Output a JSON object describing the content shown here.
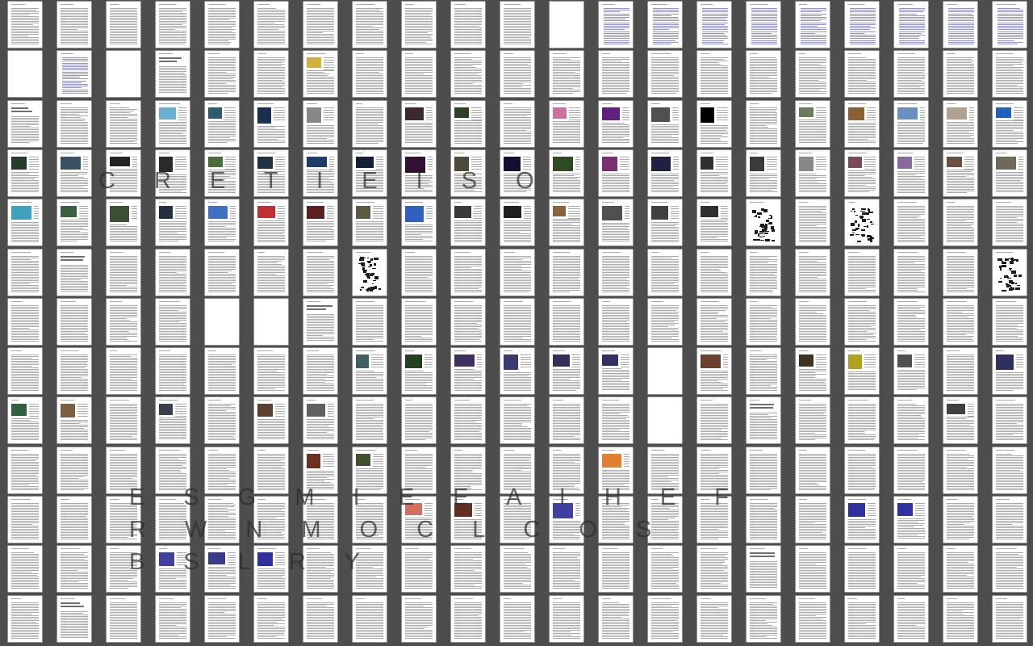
{
  "viewer": {
    "columns": 21,
    "rows": 13,
    "page_color": "#ffffff",
    "background_color": "#4d4d4d",
    "link_color": "#8f8ff0"
  },
  "overlay": {
    "line1": "C R E T I E I S O",
    "line2": "E S G M I E E A I H E F",
    "line3": "R W N M O C L C O S",
    "line4": "B S L R Y"
  },
  "pages": {
    "blank": [
      [
        0,
        1
      ],
      [
        2,
        1
      ],
      [
        11,
        0
      ],
      [
        4,
        6
      ],
      [
        13,
        8
      ],
      [
        13,
        7
      ],
      [
        5,
        6
      ]
    ],
    "images": [
      [
        0,
        3,
        "#263a2b"
      ],
      [
        1,
        3,
        "#3a5060"
      ],
      [
        2,
        3,
        "#222"
      ],
      [
        3,
        3,
        "#2a2a2a"
      ],
      [
        4,
        3,
        "#4a6b3a"
      ],
      [
        5,
        3,
        "#223044"
      ],
      [
        6,
        3,
        "#1e3c66"
      ],
      [
        7,
        3,
        "#132033"
      ],
      [
        8,
        3,
        "#321030"
      ],
      [
        9,
        3,
        "#4e4a3a"
      ],
      [
        10,
        3,
        "#101030"
      ],
      [
        11,
        3,
        "#2e4a24"
      ],
      [
        12,
        3,
        "#7a3070"
      ],
      [
        13,
        3,
        "#202040"
      ],
      [
        14,
        3,
        "#303030"
      ],
      [
        15,
        3,
        "#3a3a3a"
      ],
      [
        16,
        3,
        "#888"
      ],
      [
        17,
        3,
        "#7b4a5a"
      ],
      [
        18,
        3,
        "#8a6a9a"
      ],
      [
        19,
        3,
        "#6a5040"
      ],
      [
        20,
        3,
        "#706858"
      ],
      [
        3,
        2,
        "#6ab0d0"
      ],
      [
        4,
        2,
        "#2e5a70"
      ],
      [
        5,
        2,
        "#1a3050"
      ],
      [
        6,
        2,
        "#888"
      ],
      [
        8,
        2,
        "#3a2a30"
      ],
      [
        9,
        2,
        "#2e4028"
      ],
      [
        11,
        2,
        "#d070a0"
      ],
      [
        12,
        2,
        "#602080"
      ],
      [
        13,
        2,
        "#505050"
      ],
      [
        14,
        2,
        "#000"
      ],
      [
        16,
        2,
        "#6a7a5a"
      ],
      [
        17,
        2,
        "#8a6030"
      ],
      [
        18,
        2,
        "#6a90c0"
      ],
      [
        19,
        2,
        "#b0a090"
      ],
      [
        20,
        2,
        "#2060c0"
      ],
      [
        0,
        4,
        "#40a0c0"
      ],
      [
        1,
        4,
        "#3a6040"
      ],
      [
        2,
        4,
        "#3a5030"
      ],
      [
        3,
        4,
        "#233040"
      ],
      [
        4,
        4,
        "#4070c0"
      ],
      [
        5,
        4,
        "#c03030"
      ],
      [
        6,
        4,
        "#5a2020"
      ],
      [
        7,
        4,
        "#5a5a40"
      ],
      [
        8,
        4,
        "#3060c0"
      ],
      [
        9,
        4,
        "#3a3a3a"
      ],
      [
        10,
        4,
        "#202020"
      ],
      [
        11,
        4,
        "#8a6040"
      ],
      [
        12,
        4,
        "#505050"
      ],
      [
        13,
        4,
        "#404040"
      ],
      [
        14,
        4,
        "#303030"
      ],
      [
        6,
        1,
        "#d0b040"
      ],
      [
        0,
        8,
        "#306040"
      ],
      [
        1,
        8,
        "#7a6040"
      ],
      [
        3,
        8,
        "#3a4050"
      ],
      [
        5,
        8,
        "#5a4030"
      ],
      [
        6,
        8,
        "#606060"
      ],
      [
        7,
        7,
        "#406060"
      ],
      [
        8,
        7,
        "#204020"
      ],
      [
        9,
        7,
        "#403060"
      ],
      [
        10,
        7,
        "#3a3a70"
      ],
      [
        11,
        7,
        "#303060"
      ],
      [
        12,
        7,
        "#323264"
      ],
      [
        14,
        7,
        "#6a4030"
      ],
      [
        16,
        7,
        "#403020"
      ],
      [
        17,
        7,
        "#b0a020"
      ],
      [
        18,
        7,
        "#505050"
      ],
      [
        20,
        7,
        "#303060"
      ],
      [
        19,
        8,
        "#404040"
      ],
      [
        6,
        9,
        "#6a3020"
      ],
      [
        7,
        9,
        "#405030"
      ],
      [
        8,
        10,
        "#d07060"
      ],
      [
        9,
        10,
        "#603020"
      ],
      [
        17,
        10,
        "#3030a0"
      ],
      [
        18,
        10,
        "#3030a0"
      ],
      [
        11,
        10,
        "#4040a0"
      ],
      [
        3,
        11,
        "#4040a0"
      ],
      [
        4,
        11,
        "#3a3a8a"
      ],
      [
        5,
        11,
        "#3030a0"
      ],
      [
        12,
        9,
        "#e08030"
      ]
    ],
    "qr": [
      [
        15,
        4
      ],
      [
        17,
        4
      ],
      [
        7,
        5
      ],
      [
        20,
        5
      ],
      [
        15,
        4
      ]
    ],
    "links": [
      [
        12,
        0
      ],
      [
        13,
        0
      ],
      [
        14,
        0
      ],
      [
        15,
        0
      ],
      [
        16,
        0
      ],
      [
        17,
        0
      ],
      [
        18,
        0
      ],
      [
        19,
        0
      ],
      [
        20,
        0
      ],
      [
        1,
        1
      ]
    ],
    "headings": [
      [
        0,
        2
      ],
      [
        3,
        1
      ],
      [
        1,
        5
      ],
      [
        6,
        6
      ],
      [
        1,
        12
      ],
      [
        15,
        11
      ],
      [
        15,
        8
      ]
    ]
  }
}
